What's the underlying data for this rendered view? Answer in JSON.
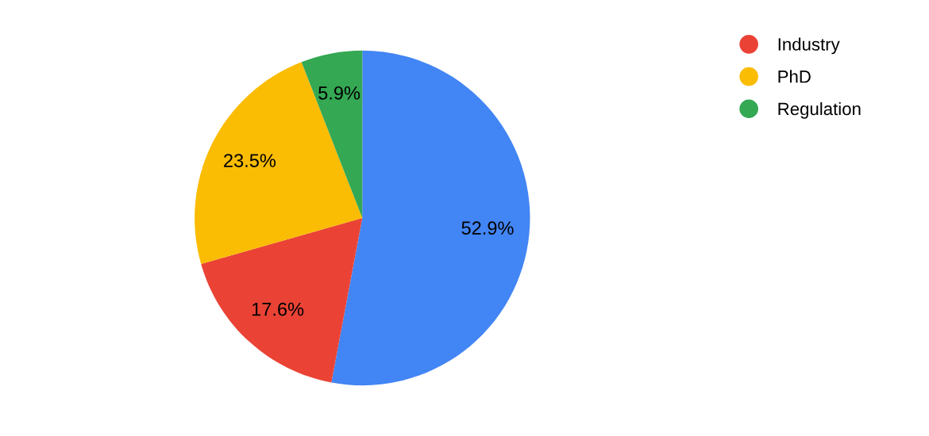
{
  "chart_data": {
    "type": "pie",
    "categories": [
      null,
      "Industry",
      "PhD",
      "Regulation"
    ],
    "values": [
      52.9,
      17.6,
      23.5,
      5.9
    ],
    "value_labels": [
      "52.9%",
      "17.6%",
      "23.5%",
      "5.9%"
    ],
    "colors": [
      "#4285f4",
      "#ea4335",
      "#fbbc04",
      "#34a853"
    ],
    "legend": "top right"
  }
}
